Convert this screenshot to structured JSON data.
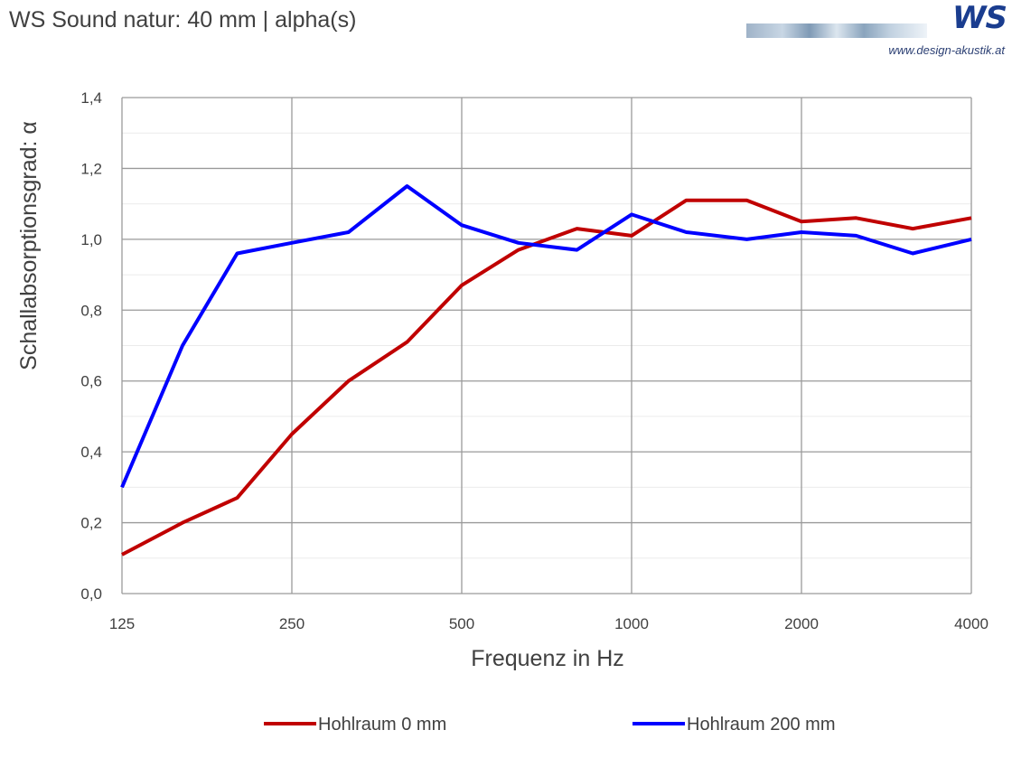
{
  "header": {
    "title": "WS Sound natur: 40 mm | alpha(s)",
    "logo_mark": "WS",
    "logo_url": "www.design-akustik.at"
  },
  "chart_data": {
    "type": "line",
    "xlabel": "Frequenz in Hz",
    "ylabel": "Schallabsorptionsgrad: α",
    "x_scale": "log",
    "x": [
      125,
      160,
      200,
      250,
      315,
      400,
      500,
      630,
      800,
      1000,
      1250,
      1600,
      2000,
      2500,
      3150,
      4000
    ],
    "x_tick_values": [
      125,
      250,
      500,
      1000,
      2000,
      4000
    ],
    "x_tick_labels": [
      "125",
      "250",
      "500",
      "1000",
      "2000",
      "4000"
    ],
    "ylim": [
      0,
      1.4
    ],
    "y_tick_values": [
      0,
      0.2,
      0.4,
      0.6,
      0.8,
      1.0,
      1.2,
      1.4
    ],
    "y_tick_labels": [
      "0,0",
      "0,2",
      "0,4",
      "0,6",
      "0,8",
      "1,0",
      "1,2",
      "1,4"
    ],
    "grid": true,
    "legend_position": "bottom",
    "series": [
      {
        "name": "Hohlraum 0 mm",
        "color": "#c00000",
        "values": [
          0.11,
          0.2,
          0.27,
          0.45,
          0.6,
          0.71,
          0.87,
          0.97,
          1.03,
          1.01,
          1.11,
          1.11,
          1.05,
          1.06,
          1.03,
          1.06
        ]
      },
      {
        "name": "Hohlraum 200 mm",
        "color": "#0000ff",
        "values": [
          0.3,
          0.7,
          0.96,
          0.99,
          1.02,
          1.15,
          1.04,
          0.99,
          0.97,
          1.07,
          1.02,
          1.0,
          1.02,
          1.01,
          0.96,
          1.0
        ]
      }
    ]
  }
}
